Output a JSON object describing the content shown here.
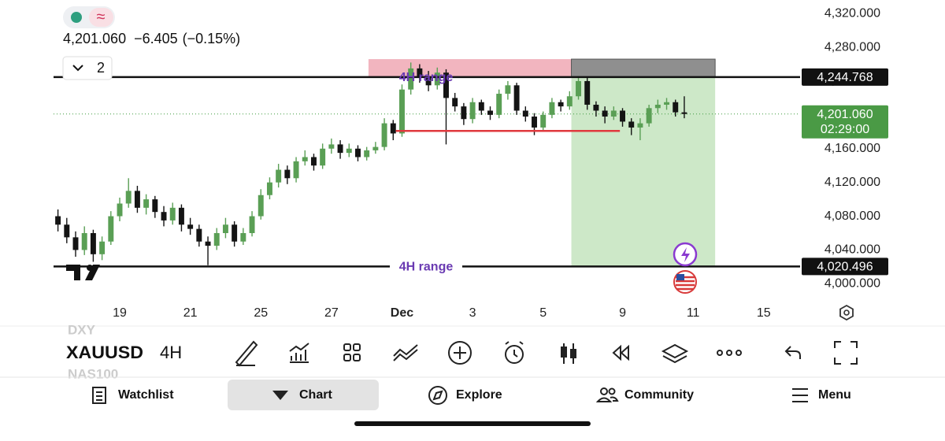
{
  "header": {
    "price": "4,201.060",
    "change": "−6.405",
    "change_pct": "(−0.15%)",
    "layouts": "2"
  },
  "chart_data": {
    "type": "candlestick",
    "symbol": "XAUUSD",
    "interval": "4H",
    "candles": [
      [
        4080,
        4088,
        4062,
        4070
      ],
      [
        4070,
        4078,
        4048,
        4055
      ],
      [
        4055,
        4062,
        4032,
        4040
      ],
      [
        4040,
        4068,
        4034,
        4060
      ],
      [
        4060,
        4064,
        4026,
        4035
      ],
      [
        4035,
        4056,
        4028,
        4050
      ],
      [
        4050,
        4086,
        4046,
        4080
      ],
      [
        4080,
        4102,
        4074,
        4095
      ],
      [
        4095,
        4125,
        4090,
        4110
      ],
      [
        4110,
        4116,
        4084,
        4090
      ],
      [
        4090,
        4106,
        4082,
        4100
      ],
      [
        4100,
        4104,
        4078,
        4085
      ],
      [
        4085,
        4092,
        4068,
        4075
      ],
      [
        4075,
        4096,
        4070,
        4090
      ],
      [
        4090,
        4094,
        4062,
        4070
      ],
      [
        4070,
        4078,
        4058,
        4065
      ],
      [
        4065,
        4070,
        4044,
        4050
      ],
      [
        4050,
        4056,
        4022,
        4045
      ],
      [
        4045,
        4066,
        4040,
        4060
      ],
      [
        4060,
        4078,
        4054,
        4070
      ],
      [
        4070,
        4074,
        4044,
        4050
      ],
      [
        4050,
        4066,
        4046,
        4060
      ],
      [
        4060,
        4086,
        4056,
        4080
      ],
      [
        4080,
        4112,
        4076,
        4105
      ],
      [
        4105,
        4126,
        4100,
        4120
      ],
      [
        4120,
        4142,
        4114,
        4135
      ],
      [
        4135,
        4140,
        4118,
        4125
      ],
      [
        4125,
        4150,
        4120,
        4145
      ],
      [
        4145,
        4158,
        4140,
        4150
      ],
      [
        4150,
        4154,
        4134,
        4140
      ],
      [
        4140,
        4166,
        4136,
        4160
      ],
      [
        4160,
        4172,
        4154,
        4165
      ],
      [
        4165,
        4170,
        4148,
        4155
      ],
      [
        4155,
        4166,
        4150,
        4160
      ],
      [
        4160,
        4164,
        4145,
        4150
      ],
      [
        4150,
        4162,
        4146,
        4158
      ],
      [
        4158,
        4168,
        4154,
        4162
      ],
      [
        4162,
        4196,
        4158,
        4190
      ],
      [
        4190,
        4194,
        4170,
        4178
      ],
      [
        4178,
        4236,
        4174,
        4230
      ],
      [
        4230,
        4262,
        4224,
        4255
      ],
      [
        4255,
        4260,
        4238,
        4245
      ],
      [
        4245,
        4252,
        4228,
        4235
      ],
      [
        4235,
        4256,
        4230,
        4250
      ],
      [
        4250,
        4254,
        4165,
        4220
      ],
      [
        4220,
        4226,
        4204,
        4210
      ],
      [
        4210,
        4214,
        4188,
        4195
      ],
      [
        4195,
        4220,
        4190,
        4215
      ],
      [
        4215,
        4218,
        4200,
        4205
      ],
      [
        4205,
        4210,
        4194,
        4200
      ],
      [
        4200,
        4230,
        4196,
        4225
      ],
      [
        4225,
        4240,
        4218,
        4235
      ],
      [
        4235,
        4238,
        4200,
        4205
      ],
      [
        4205,
        4210,
        4192,
        4198
      ],
      [
        4198,
        4202,
        4176,
        4185
      ],
      [
        4185,
        4204,
        4180,
        4200
      ],
      [
        4200,
        4220,
        4196,
        4215
      ],
      [
        4215,
        4218,
        4204,
        4210
      ],
      [
        4210,
        4228,
        4206,
        4222
      ],
      [
        4222,
        4246,
        4218,
        4240
      ],
      [
        4240,
        4244,
        4206,
        4212
      ],
      [
        4212,
        4216,
        4198,
        4205
      ],
      [
        4205,
        4210,
        4190,
        4198
      ],
      [
        4198,
        4210,
        4194,
        4205
      ],
      [
        4205,
        4208,
        4186,
        4192
      ],
      [
        4192,
        4196,
        4176,
        4185
      ],
      [
        4185,
        4196,
        4170,
        4190
      ],
      [
        4190,
        4212,
        4186,
        4208
      ],
      [
        4208,
        4218,
        4202,
        4212
      ],
      [
        4212,
        4220,
        4206,
        4215
      ],
      [
        4215,
        4218,
        4198,
        4203
      ],
      [
        4203,
        4222,
        4196,
        4201.06
      ]
    ],
    "colors": {
      "up": "#5a9f55",
      "down": "#141414"
    },
    "xlim": [
      -0.5,
      82.7
    ],
    "xticks": [
      {
        "value": 7,
        "label": "19"
      },
      {
        "value": 15,
        "label": "21"
      },
      {
        "value": 23,
        "label": "25"
      },
      {
        "value": 31,
        "label": "27"
      },
      {
        "value": 39,
        "label": "Dec"
      },
      {
        "value": 47,
        "label": "3"
      },
      {
        "value": 55,
        "label": "5"
      },
      {
        "value": 64,
        "label": "9"
      },
      {
        "value": 72,
        "label": "11"
      },
      {
        "value": 80,
        "label": "15"
      }
    ],
    "ylim": [
      3991,
      4336
    ],
    "yticks": [
      {
        "value": 4000,
        "label": "4,000.000"
      },
      {
        "value": 4040,
        "label": "4,040.000"
      },
      {
        "value": 4080,
        "label": "4,080.000"
      },
      {
        "value": 4120,
        "label": "4,120.000"
      },
      {
        "value": 4160,
        "label": "4,160.000"
      },
      {
        "value": 4200,
        "label": "4,200.000"
      },
      {
        "value": 4240,
        "label": "4,240.000"
      },
      {
        "value": 4280,
        "label": "4,280.000"
      },
      {
        "value": 4320,
        "label": "4,320.000"
      }
    ],
    "levels": [
      {
        "label": "4H range",
        "price": {
          "value": 4244.768,
          "label": "4,244.768"
        }
      },
      {
        "label": "4H range",
        "price": {
          "value": 4020.496,
          "label": "4,020.496"
        }
      }
    ],
    "last_price": {
      "value": 4201.06,
      "label": "4,201.060",
      "countdown": "02:29:00"
    },
    "support": {
      "value": 4181,
      "x": [
        38.3,
        63.7
      ]
    },
    "zone": {
      "x": [
        35.2,
        58.2
      ],
      "ylim": [
        4244.768,
        4266
      ]
    },
    "position": {
      "x": [
        58.2,
        74.5
      ],
      "stop": 4266,
      "entry": 4244.768,
      "target": 4020.496
    }
  },
  "watchlist_faded": [
    "DXY",
    "NAS100"
  ],
  "nav": [
    "Watchlist",
    "Chart",
    "Explore",
    "Community",
    "Menu"
  ]
}
